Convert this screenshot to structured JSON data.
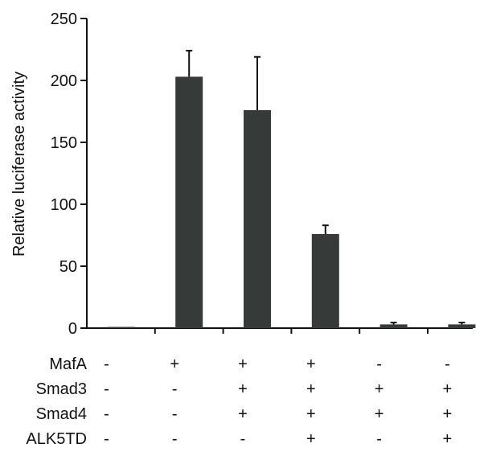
{
  "chart_data": {
    "type": "bar",
    "ylabel": "Relative luciferase activity",
    "ylim": [
      0,
      250
    ],
    "yticks": [
      "0",
      "50",
      "100",
      "150",
      "200",
      "250"
    ],
    "bar_color": "#363b3a",
    "values": [
      1,
      203,
      176,
      76,
      3,
      3
    ],
    "errors": [
      0,
      21,
      43,
      7,
      1.5,
      1.5
    ],
    "conditions": [
      {
        "name": "MafA",
        "signs": [
          "-",
          "+",
          "+",
          "+",
          "-",
          "-"
        ]
      },
      {
        "name": "Smad3",
        "signs": [
          "-",
          "-",
          "+",
          "+",
          "+",
          "+"
        ]
      },
      {
        "name": "Smad4",
        "signs": [
          "-",
          "-",
          "+",
          "+",
          "+",
          "+"
        ]
      },
      {
        "name": "ALK5TD",
        "signs": [
          "-",
          "-",
          "-",
          "+",
          "-",
          "+"
        ]
      }
    ]
  }
}
